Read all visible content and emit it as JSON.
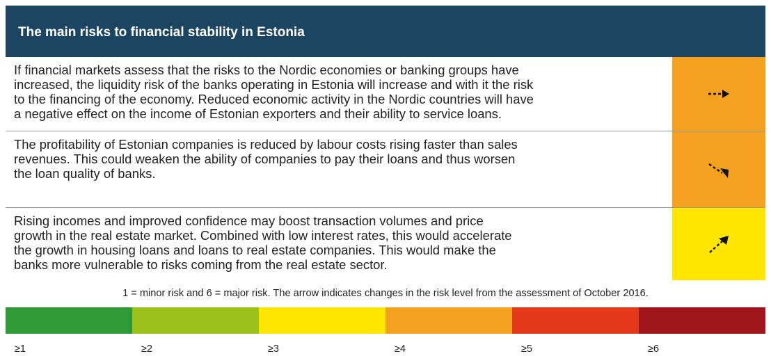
{
  "header": {
    "title": "The main risks to financial stability in Estonia"
  },
  "risks": [
    {
      "lines": [
        "If financial markets assess that the risks to the Nordic economies or banking groups have",
        "increased, the liquidity risk of the banks operating in Estonia will increase and with it the risk",
        "to the financing of the economy. Reduced economic activity in the Nordic countries will have",
        "a negative effect on the income of Estonian exporters and their ability to service loans."
      ],
      "color": "#f4a11f"
    },
    {
      "lines": [
        "The profitability of Estonian companies is reduced by labour costs rising faster than sales",
        "revenues. This could weaken the ability of companies to pay their loans and thus worsen",
        "the loan quality of banks."
      ],
      "color": "#f4a11f"
    },
    {
      "lines": [
        "Rising incomes and improved confidence may boost transaction volumes and price",
        "growth in the real estate market. Combined with low interest rates, this would accelerate",
        "the growth in housing loans and loans to real estate companies. This would make the",
        "banks more vulnerable to risks coming from the real estate sector."
      ],
      "color": "#ffe600"
    }
  ],
  "note": "1 = minor risk and 6 = major risk. The arrow indicates changes in the risk level from the assessment of October 2016.",
  "scale": [
    {
      "label": "≥1",
      "color": "#2e9a35"
    },
    {
      "label": "≥2",
      "color": "#9bc21a"
    },
    {
      "label": "≥3",
      "color": "#ffe600"
    },
    {
      "label": "≥4",
      "color": "#f4a11f"
    },
    {
      "label": "≥5",
      "color": "#e4381b"
    },
    {
      "label": "≥6",
      "color": "#a0141b"
    }
  ]
}
